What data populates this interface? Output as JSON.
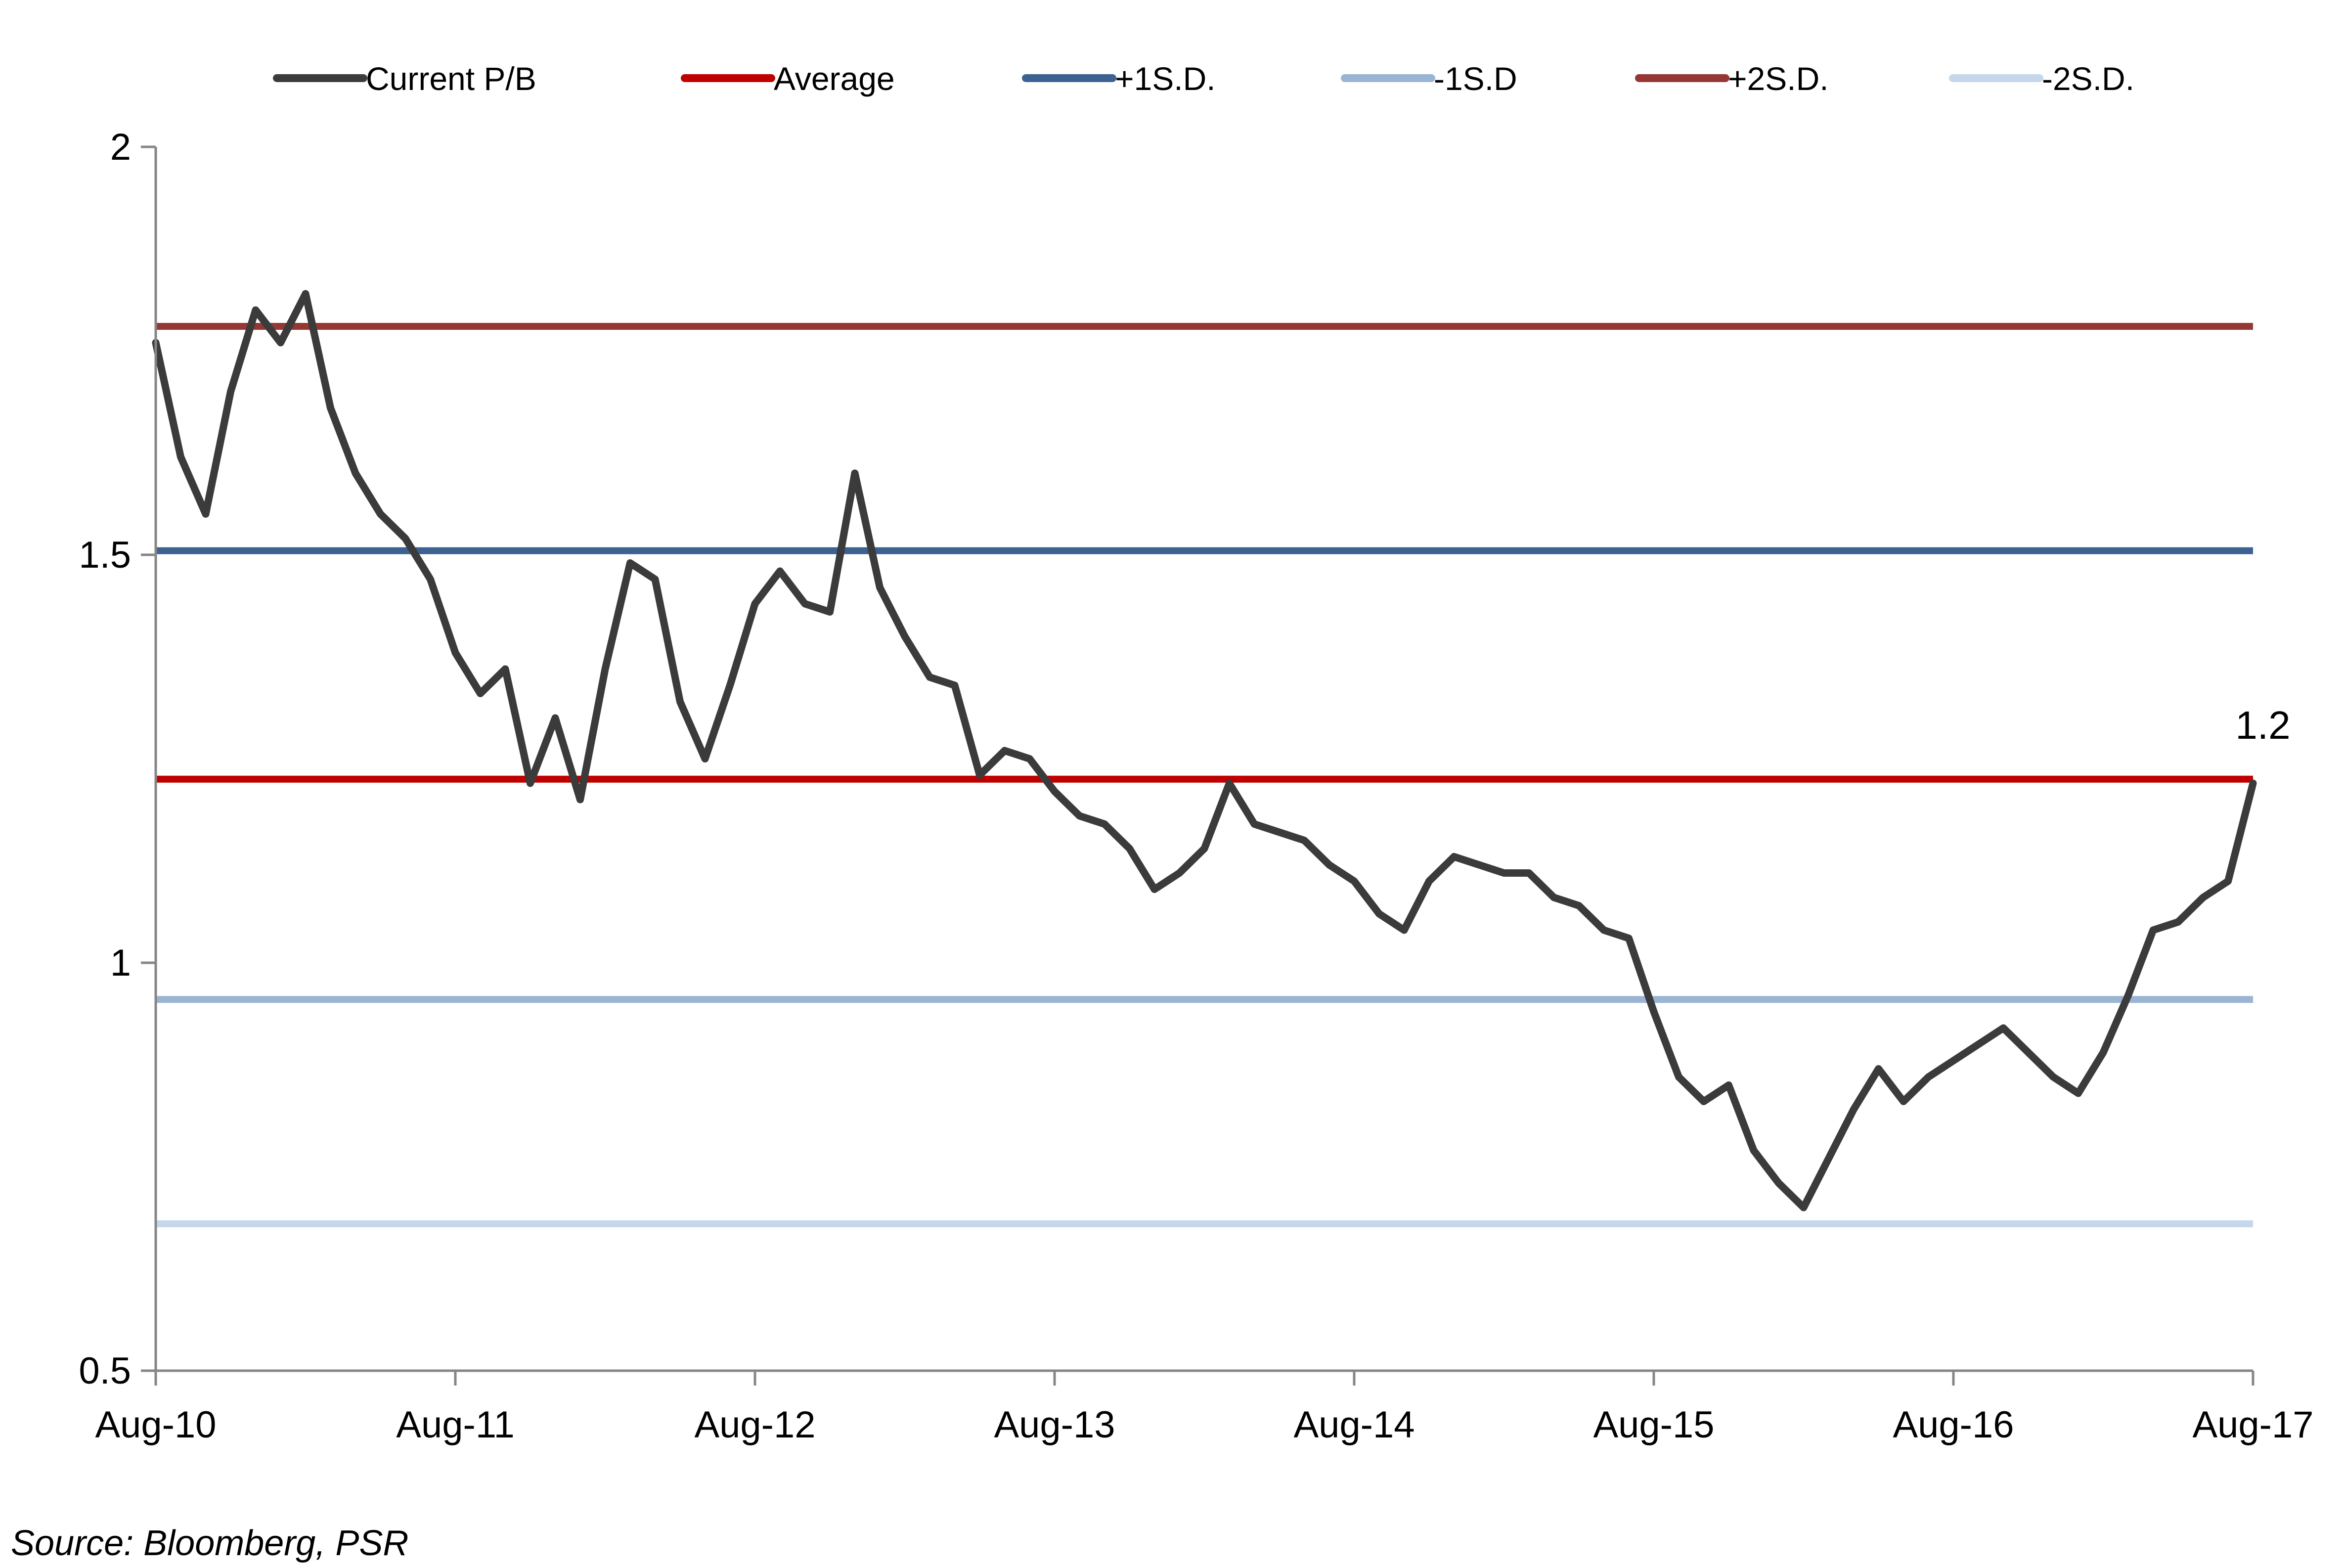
{
  "chart_data": {
    "type": "line",
    "title": "",
    "xlabel": "",
    "ylabel": "",
    "x_ticks": [
      "Aug-10",
      "Aug-11",
      "Aug-12",
      "Aug-13",
      "Aug-14",
      "Aug-15",
      "Aug-16",
      "Aug-17"
    ],
    "y_ticks": [
      "0.5",
      "1",
      "1.5",
      "2"
    ],
    "ylim": [
      0.5,
      2
    ],
    "xlim": [
      "Aug-10",
      "Aug-17"
    ],
    "grid": false,
    "legend_position": "top",
    "series": [
      {
        "name": "Current P/B",
        "color": "#3b3b3b",
        "points": [
          [
            "Aug-10",
            1.76
          ],
          [
            "Sep-10",
            1.62
          ],
          [
            "Oct-10",
            1.55
          ],
          [
            "Nov-10",
            1.7
          ],
          [
            "Dec-10",
            1.8
          ],
          [
            "Jan-11",
            1.76
          ],
          [
            "Feb-11",
            1.82
          ],
          [
            "Mar-11",
            1.68
          ],
          [
            "Apr-11",
            1.6
          ],
          [
            "May-11",
            1.55
          ],
          [
            "Jun-11",
            1.52
          ],
          [
            "Jul-11",
            1.47
          ],
          [
            "Aug-11",
            1.38
          ],
          [
            "Sep-11",
            1.33
          ],
          [
            "Oct-11",
            1.36
          ],
          [
            "Nov-11",
            1.22
          ],
          [
            "Dec-11",
            1.3
          ],
          [
            "Jan-12",
            1.2
          ],
          [
            "Feb-12",
            1.36
          ],
          [
            "Mar-12",
            1.49
          ],
          [
            "Apr-12",
            1.47
          ],
          [
            "May-12",
            1.32
          ],
          [
            "Jun-12",
            1.25
          ],
          [
            "Jul-12",
            1.34
          ],
          [
            "Aug-12",
            1.44
          ],
          [
            "Sep-12",
            1.48
          ],
          [
            "Oct-12",
            1.44
          ],
          [
            "Nov-12",
            1.43
          ],
          [
            "Dec-12",
            1.6
          ],
          [
            "Jan-13",
            1.46
          ],
          [
            "Feb-13",
            1.4
          ],
          [
            "Mar-13",
            1.35
          ],
          [
            "Apr-13",
            1.34
          ],
          [
            "May-13",
            1.23
          ],
          [
            "Jun-13",
            1.26
          ],
          [
            "Jul-13",
            1.25
          ],
          [
            "Aug-13",
            1.21
          ],
          [
            "Sep-13",
            1.18
          ],
          [
            "Oct-13",
            1.17
          ],
          [
            "Nov-13",
            1.14
          ],
          [
            "Dec-13",
            1.09
          ],
          [
            "Jan-14",
            1.11
          ],
          [
            "Feb-14",
            1.14
          ],
          [
            "Mar-14",
            1.22
          ],
          [
            "Apr-14",
            1.17
          ],
          [
            "May-14",
            1.16
          ],
          [
            "Jun-14",
            1.15
          ],
          [
            "Jul-14",
            1.12
          ],
          [
            "Aug-14",
            1.1
          ],
          [
            "Sep-14",
            1.06
          ],
          [
            "Oct-14",
            1.04
          ],
          [
            "Nov-14",
            1.1
          ],
          [
            "Dec-14",
            1.13
          ],
          [
            "Jan-15",
            1.12
          ],
          [
            "Feb-15",
            1.11
          ],
          [
            "Mar-15",
            1.11
          ],
          [
            "Apr-15",
            1.08
          ],
          [
            "May-15",
            1.07
          ],
          [
            "Jun-15",
            1.04
          ],
          [
            "Jul-15",
            1.03
          ],
          [
            "Aug-15",
            0.94
          ],
          [
            "Sep-15",
            0.86
          ],
          [
            "Oct-15",
            0.83
          ],
          [
            "Nov-15",
            0.85
          ],
          [
            "Dec-15",
            0.77
          ],
          [
            "Jan-16",
            0.73
          ],
          [
            "Feb-16",
            0.7
          ],
          [
            "Mar-16",
            0.76
          ],
          [
            "Apr-16",
            0.82
          ],
          [
            "May-16",
            0.87
          ],
          [
            "Jun-16",
            0.83
          ],
          [
            "Jul-16",
            0.86
          ],
          [
            "Aug-16",
            0.88
          ],
          [
            "Sep-16",
            0.9
          ],
          [
            "Oct-16",
            0.92
          ],
          [
            "Nov-16",
            0.89
          ],
          [
            "Dec-16",
            0.86
          ],
          [
            "Jan-17",
            0.84
          ],
          [
            "Feb-17",
            0.89
          ],
          [
            "Mar-17",
            0.96
          ],
          [
            "Apr-17",
            1.04
          ],
          [
            "May-17",
            1.05
          ],
          [
            "Jun-17",
            1.08
          ],
          [
            "Jul-17",
            1.1
          ],
          [
            "Aug-17",
            1.22
          ]
        ]
      },
      {
        "name": "Average",
        "color": "#c00000",
        "value": 1.225
      },
      {
        "name": "+1S.D.",
        "color": "#3d6190",
        "value": 1.505
      },
      {
        "name": "-1S.D",
        "color": "#9ab4d4",
        "value": 0.955
      },
      {
        "name": "+2S.D.",
        "color": "#953735",
        "value": 1.78
      },
      {
        "name": "-2S.D.",
        "color": "#c5d7ea",
        "value": 0.68
      }
    ],
    "annotations": [
      {
        "text": "1.2",
        "x": "Aug-17",
        "y": 1.22
      }
    ]
  },
  "footer": {
    "source": "Source: Bloomberg, PSR"
  }
}
